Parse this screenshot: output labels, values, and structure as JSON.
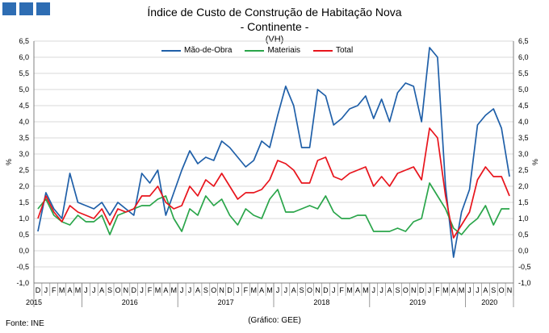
{
  "header": {
    "title": "Índice de Custo de Construção de Habitação Nova",
    "subtitle": "- Continente -",
    "unit": "(VH)"
  },
  "footer": {
    "source": "Fonte: INE",
    "credit": "(Gráfico: GEE)"
  },
  "chart_data": {
    "type": "line",
    "title": "Índice de Custo de Construção de Habitação Nova",
    "subtitle": "- Continente -",
    "ylabel": "%",
    "ylabel_right": "%",
    "ylim": [
      -1.0,
      6.5
    ],
    "yticks": [
      "-1,0",
      "-0,5",
      "0,0",
      "0,5",
      "1,0",
      "1,5",
      "2,0",
      "2,5",
      "3,0",
      "3,5",
      "4,0",
      "4,5",
      "5,0",
      "5,5",
      "6,0",
      "6,5"
    ],
    "grid": true,
    "legend_position": "top",
    "x": [
      "D",
      "J",
      "F",
      "M",
      "A",
      "M",
      "J",
      "J",
      "A",
      "S",
      "O",
      "N",
      "D",
      "J",
      "F",
      "M",
      "A",
      "M",
      "J",
      "J",
      "A",
      "S",
      "O",
      "N",
      "D",
      "J",
      "F",
      "M",
      "A",
      "M",
      "J",
      "J",
      "A",
      "S",
      "O",
      "N",
      "D",
      "J",
      "F",
      "M",
      "A",
      "M",
      "J",
      "J",
      "A",
      "S",
      "O",
      "N",
      "D",
      "J",
      "F",
      "M",
      "A",
      "M",
      "J",
      "J",
      "A",
      "S",
      "O",
      "N"
    ],
    "year_labels": [
      {
        "label": "2015",
        "index": 0
      },
      {
        "label": "2016",
        "index": 6
      },
      {
        "label": "2017",
        "index": 18
      },
      {
        "label": "2018",
        "index": 30
      },
      {
        "label": "2019",
        "index": 42
      },
      {
        "label": "2020",
        "index": 54
      }
    ],
    "series": [
      {
        "name": "Mão-de-Obra",
        "color": "#1f5fa8",
        "values": [
          0.6,
          1.8,
          1.3,
          1.0,
          2.4,
          1.5,
          1.4,
          1.3,
          1.5,
          1.1,
          1.5,
          1.3,
          1.1,
          2.4,
          2.1,
          2.5,
          1.1,
          1.8,
          2.5,
          3.1,
          2.7,
          2.9,
          2.8,
          3.4,
          3.2,
          2.9,
          2.6,
          2.8,
          3.4,
          3.2,
          4.2,
          5.1,
          4.5,
          3.2,
          3.2,
          5.0,
          4.8,
          3.9,
          4.1,
          4.4,
          4.5,
          4.8,
          4.1,
          4.7,
          4.0,
          4.9,
          5.2,
          5.1,
          4.0,
          6.3,
          6.0,
          2.0,
          -0.2,
          1.2,
          1.9,
          3.9,
          4.2,
          4.4,
          3.8,
          2.3
        ]
      },
      {
        "name": "Materiais",
        "color": "#2aa54a",
        "values": [
          1.3,
          1.6,
          1.1,
          0.9,
          0.8,
          1.1,
          0.9,
          0.9,
          1.1,
          0.5,
          1.1,
          1.2,
          1.3,
          1.4,
          1.4,
          1.6,
          1.7,
          1.0,
          0.6,
          1.3,
          1.1,
          1.7,
          1.4,
          1.6,
          1.1,
          0.8,
          1.3,
          1.1,
          1.0,
          1.6,
          1.9,
          1.2,
          1.2,
          1.3,
          1.4,
          1.3,
          1.7,
          1.2,
          1.0,
          1.0,
          1.1,
          1.1,
          0.6,
          0.6,
          0.6,
          0.7,
          0.6,
          0.9,
          1.0,
          2.1,
          1.7,
          1.3,
          0.7,
          0.5,
          0.8,
          1.0,
          1.4,
          0.8,
          1.3,
          1.3
        ]
      },
      {
        "name": "Total",
        "color": "#e8141c",
        "values": [
          1.0,
          1.7,
          1.2,
          0.9,
          1.4,
          1.2,
          1.1,
          1.0,
          1.3,
          0.8,
          1.3,
          1.2,
          1.3,
          1.7,
          1.7,
          2.0,
          1.5,
          1.3,
          1.4,
          2.0,
          1.7,
          2.2,
          2.0,
          2.4,
          2.0,
          1.6,
          1.8,
          1.8,
          1.9,
          2.2,
          2.8,
          2.7,
          2.5,
          2.1,
          2.1,
          2.8,
          2.9,
          2.3,
          2.2,
          2.4,
          2.5,
          2.6,
          2.0,
          2.3,
          2.0,
          2.4,
          2.5,
          2.6,
          2.2,
          3.8,
          3.5,
          1.7,
          0.4,
          0.8,
          1.2,
          2.2,
          2.6,
          2.3,
          2.3,
          1.7
        ]
      }
    ]
  }
}
